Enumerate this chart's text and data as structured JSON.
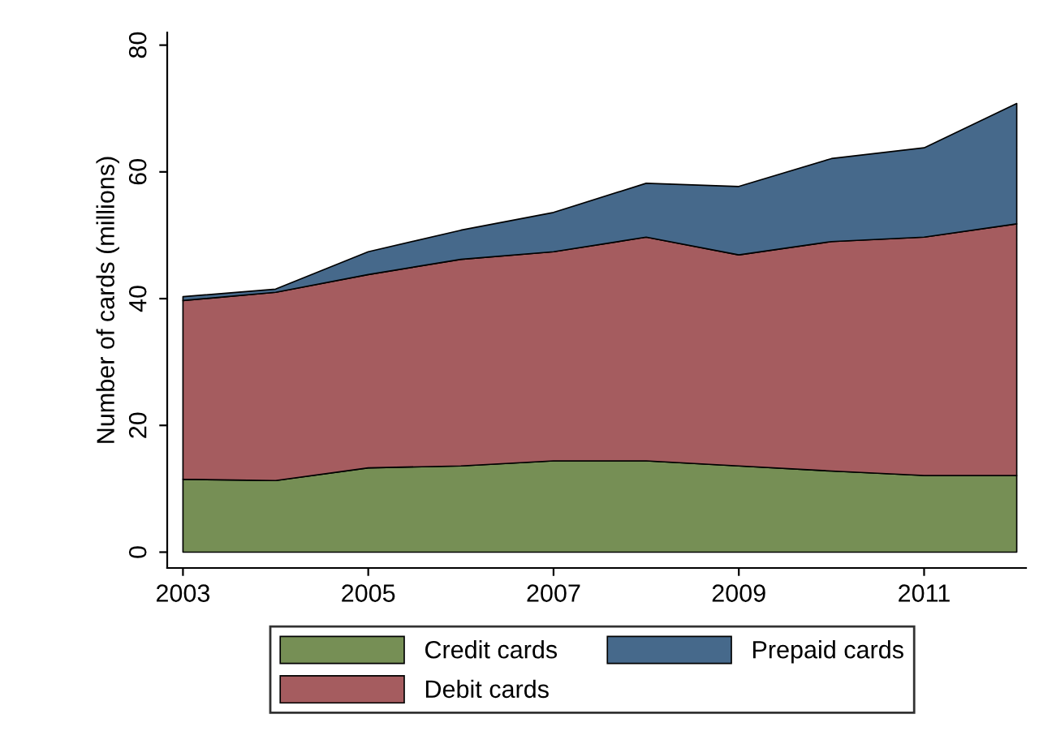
{
  "chart_data": {
    "type": "area",
    "stacked": true,
    "ylabel": "Number of cards (millions)",
    "x": [
      2003,
      2004,
      2005,
      2006,
      2007,
      2008,
      2009,
      2010,
      2011,
      2012
    ],
    "series": [
      {
        "name": "Credit cards",
        "color": "#768f55",
        "values": [
          11.5,
          11.3,
          13.3,
          13.6,
          14.4,
          14.4,
          13.6,
          12.8,
          12.1,
          12.1
        ]
      },
      {
        "name": "Debit cards",
        "color": "#a55c5f",
        "values": [
          28.2,
          29.7,
          30.5,
          32.6,
          33.0,
          35.3,
          33.3,
          36.2,
          37.6,
          39.7
        ]
      },
      {
        "name": "Prepaid cards",
        "color": "#46698b",
        "values": [
          0.6,
          0.5,
          3.6,
          4.6,
          6.2,
          8.5,
          10.8,
          13.1,
          14.1,
          19.0
        ]
      }
    ],
    "xlim": [
      2002.83,
      2012.1
    ],
    "xticks": [
      2003,
      2005,
      2007,
      2009,
      2011
    ],
    "ylim": [
      -2.5,
      82
    ],
    "yticks": [
      0,
      20,
      40,
      60,
      80
    ],
    "grid": false,
    "legend": "bottom"
  }
}
